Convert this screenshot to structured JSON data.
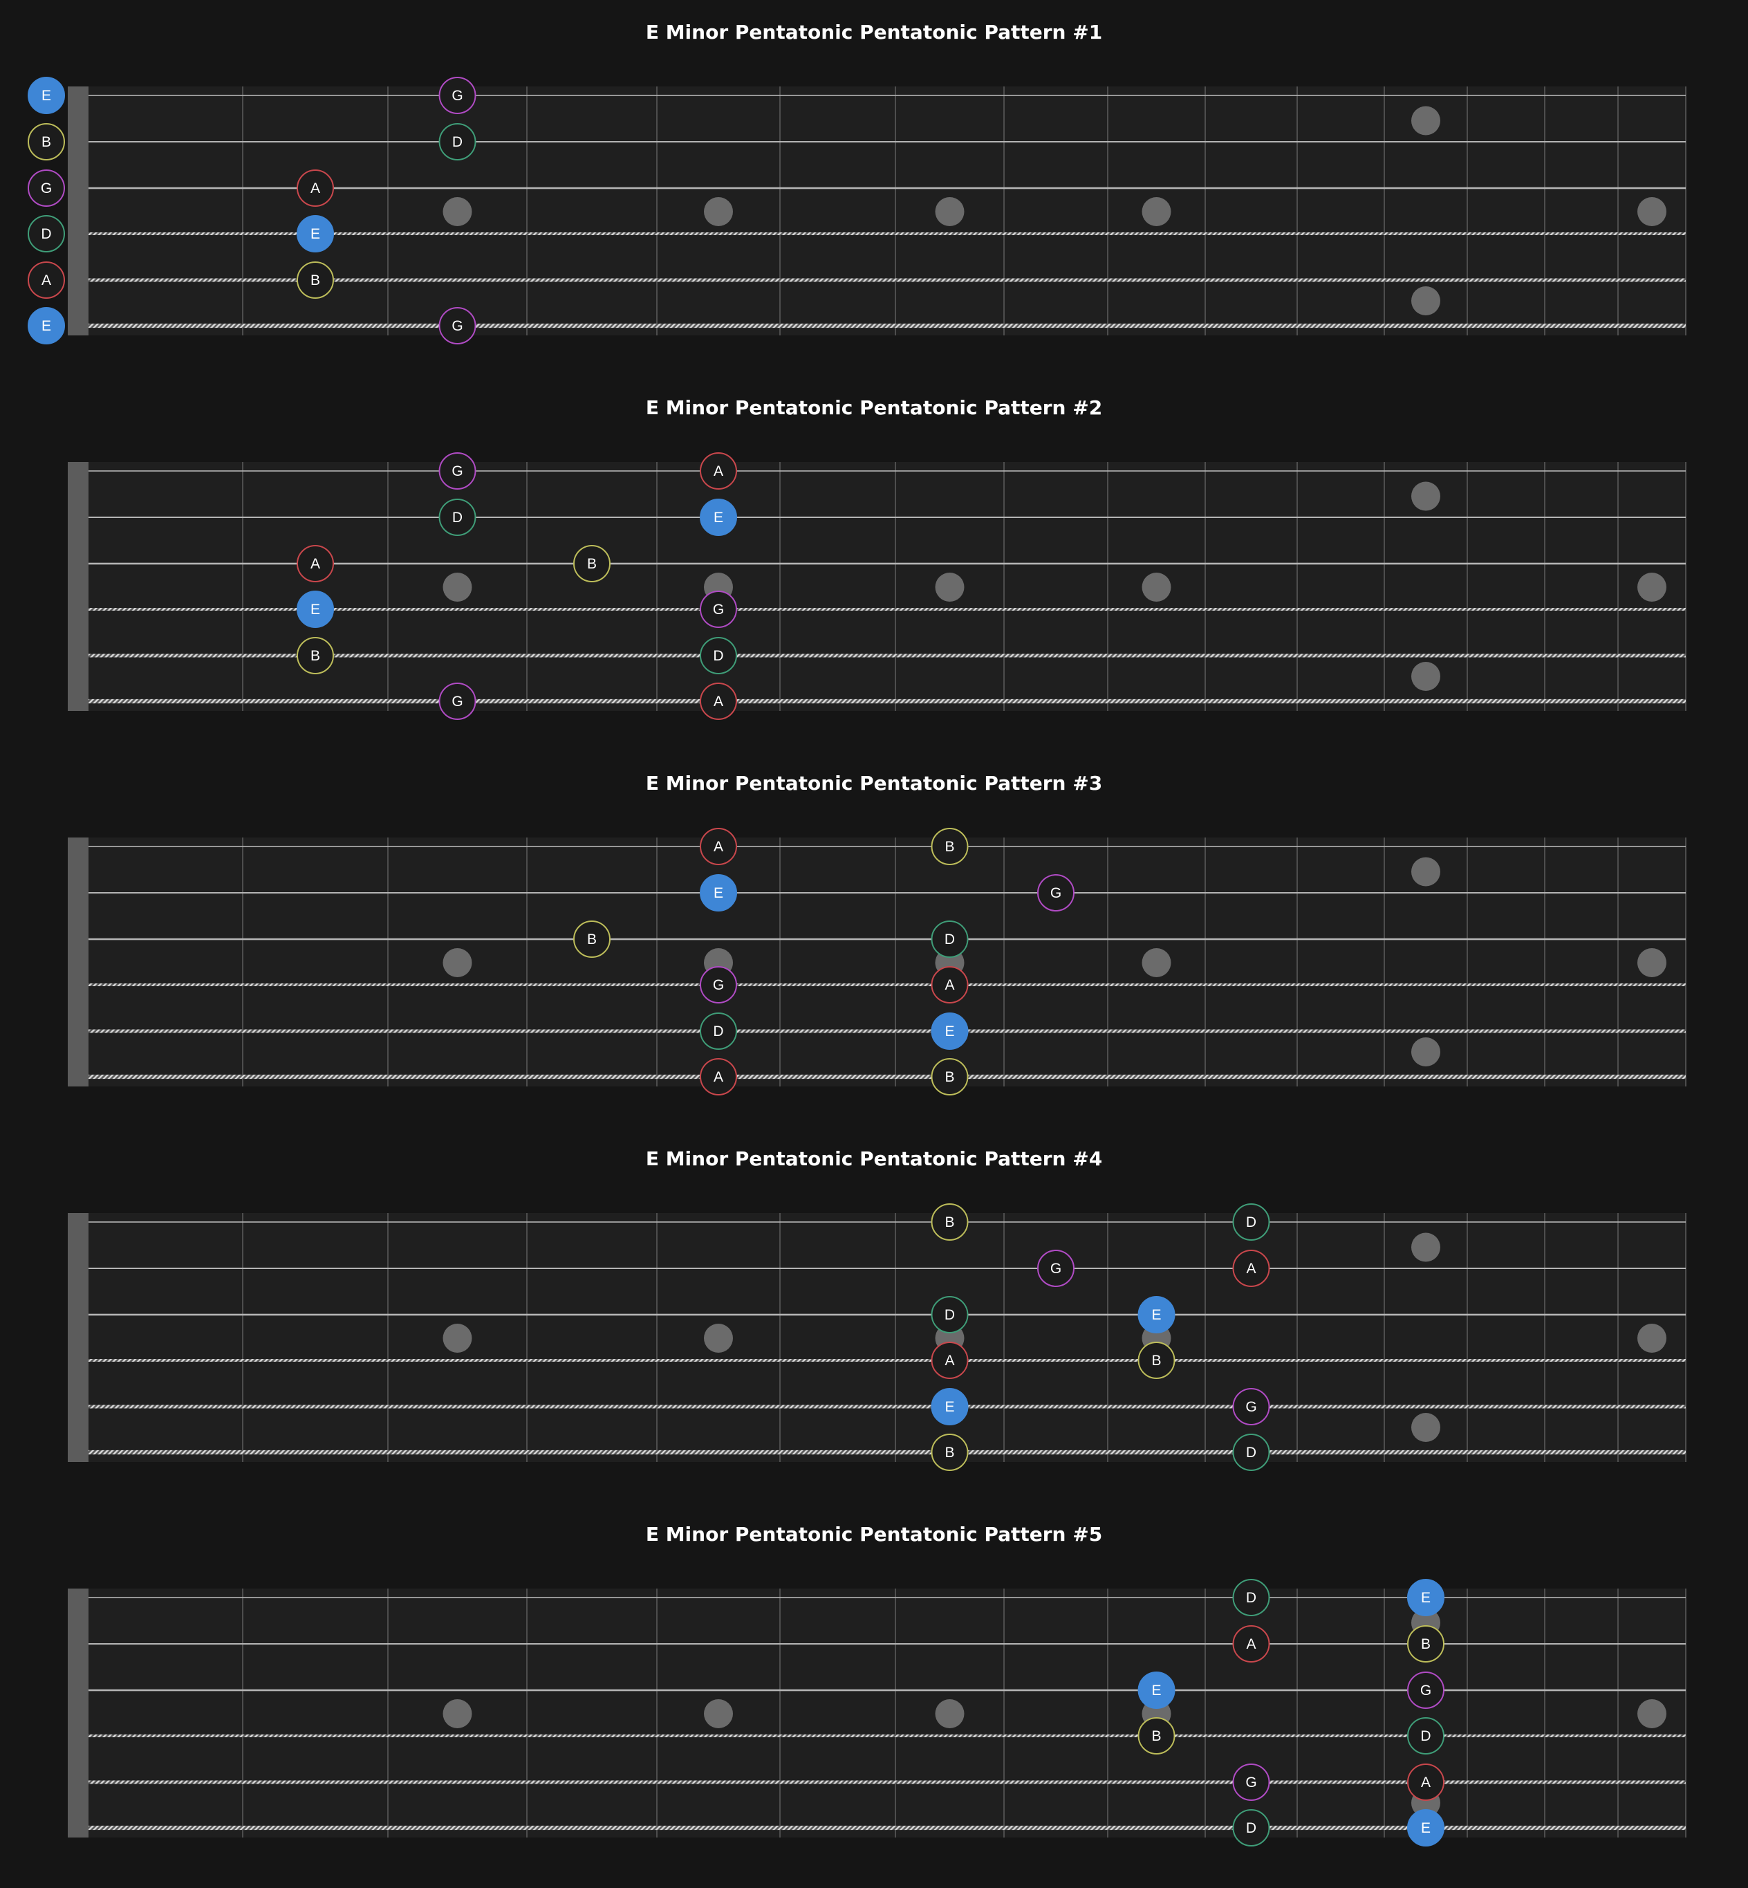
{
  "colors": {
    "background": "#151515",
    "fretboard": "#1f1f1f",
    "nut": "#5c5c5c",
    "fret": "#4d4d4d",
    "string": "#b5b5b5",
    "inlay": "#6b6b6b",
    "root_fill": "#3e86d6",
    "note_fill": "#1c1c1c",
    "note_text": "#ffffff",
    "ring": {
      "E": "#3e86d6",
      "B": "#bdbd5a",
      "G": "#b04bc4",
      "D": "#3f9d78",
      "A": "#c9474c"
    }
  },
  "string_order": [
    "high E",
    "B",
    "G",
    "D",
    "A",
    "low E"
  ],
  "open_string_labels": [
    "E",
    "B",
    "G",
    "D",
    "A",
    "E"
  ],
  "single_inlay_frets": [
    3,
    5,
    7,
    9,
    15
  ],
  "double_inlay_frets": [
    12
  ],
  "root_note": "E",
  "diagrams": [
    {
      "title": "E Minor Pentatonic Pentatonic Pattern #1",
      "show_open": true,
      "notes": [
        {
          "string": 1,
          "fret": 3,
          "label": "G"
        },
        {
          "string": 2,
          "fret": 3,
          "label": "D"
        },
        {
          "string": 3,
          "fret": 2,
          "label": "A"
        },
        {
          "string": 4,
          "fret": 2,
          "label": "E"
        },
        {
          "string": 5,
          "fret": 2,
          "label": "B"
        },
        {
          "string": 6,
          "fret": 3,
          "label": "G"
        }
      ]
    },
    {
      "title": "E Minor Pentatonic Pentatonic Pattern #2",
      "show_open": false,
      "notes": [
        {
          "string": 1,
          "fret": 3,
          "label": "G"
        },
        {
          "string": 1,
          "fret": 5,
          "label": "A"
        },
        {
          "string": 2,
          "fret": 3,
          "label": "D"
        },
        {
          "string": 2,
          "fret": 5,
          "label": "E"
        },
        {
          "string": 3,
          "fret": 2,
          "label": "A"
        },
        {
          "string": 3,
          "fret": 4,
          "label": "B"
        },
        {
          "string": 4,
          "fret": 2,
          "label": "E"
        },
        {
          "string": 4,
          "fret": 5,
          "label": "G"
        },
        {
          "string": 5,
          "fret": 2,
          "label": "B"
        },
        {
          "string": 5,
          "fret": 5,
          "label": "D"
        },
        {
          "string": 6,
          "fret": 3,
          "label": "G"
        },
        {
          "string": 6,
          "fret": 5,
          "label": "A"
        }
      ]
    },
    {
      "title": "E Minor Pentatonic Pentatonic Pattern #3",
      "show_open": false,
      "notes": [
        {
          "string": 1,
          "fret": 5,
          "label": "A"
        },
        {
          "string": 1,
          "fret": 7,
          "label": "B"
        },
        {
          "string": 2,
          "fret": 5,
          "label": "E"
        },
        {
          "string": 2,
          "fret": 8,
          "label": "G"
        },
        {
          "string": 3,
          "fret": 4,
          "label": "B"
        },
        {
          "string": 3,
          "fret": 7,
          "label": "D"
        },
        {
          "string": 4,
          "fret": 5,
          "label": "G"
        },
        {
          "string": 4,
          "fret": 7,
          "label": "A"
        },
        {
          "string": 5,
          "fret": 5,
          "label": "D"
        },
        {
          "string": 5,
          "fret": 7,
          "label": "E"
        },
        {
          "string": 6,
          "fret": 5,
          "label": "A"
        },
        {
          "string": 6,
          "fret": 7,
          "label": "B"
        }
      ]
    },
    {
      "title": "E Minor Pentatonic Pentatonic Pattern #4",
      "show_open": false,
      "notes": [
        {
          "string": 1,
          "fret": 7,
          "label": "B"
        },
        {
          "string": 1,
          "fret": 10,
          "label": "D"
        },
        {
          "string": 2,
          "fret": 8,
          "label": "G"
        },
        {
          "string": 2,
          "fret": 10,
          "label": "A"
        },
        {
          "string": 3,
          "fret": 7,
          "label": "D"
        },
        {
          "string": 3,
          "fret": 9,
          "label": "E"
        },
        {
          "string": 4,
          "fret": 7,
          "label": "A"
        },
        {
          "string": 4,
          "fret": 9,
          "label": "B"
        },
        {
          "string": 5,
          "fret": 7,
          "label": "E"
        },
        {
          "string": 5,
          "fret": 10,
          "label": "G"
        },
        {
          "string": 6,
          "fret": 7,
          "label": "B"
        },
        {
          "string": 6,
          "fret": 10,
          "label": "D"
        }
      ]
    },
    {
      "title": "E Minor Pentatonic Pentatonic Pattern #5",
      "show_open": false,
      "notes": [
        {
          "string": 1,
          "fret": 10,
          "label": "D"
        },
        {
          "string": 1,
          "fret": 12,
          "label": "E"
        },
        {
          "string": 2,
          "fret": 10,
          "label": "A"
        },
        {
          "string": 2,
          "fret": 12,
          "label": "B"
        },
        {
          "string": 3,
          "fret": 9,
          "label": "E"
        },
        {
          "string": 3,
          "fret": 12,
          "label": "G"
        },
        {
          "string": 4,
          "fret": 9,
          "label": "B"
        },
        {
          "string": 4,
          "fret": 12,
          "label": "D"
        },
        {
          "string": 5,
          "fret": 10,
          "label": "G"
        },
        {
          "string": 5,
          "fret": 12,
          "label": "A"
        },
        {
          "string": 6,
          "fret": 10,
          "label": "D"
        },
        {
          "string": 6,
          "fret": 12,
          "label": "E"
        }
      ]
    }
  ]
}
